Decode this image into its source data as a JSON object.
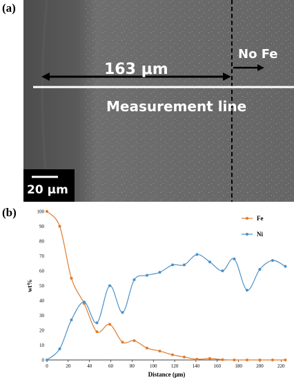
{
  "figure": {
    "panel_a_label": "(a)",
    "panel_b_label": "(b)"
  },
  "sem_image": {
    "distance_label": "163 μm",
    "no_fe_label": "No Fe",
    "measurement_label": "Measurement line",
    "scale_bar_label": "20 μm"
  },
  "colors": {
    "fe": "#e07b2c",
    "ni": "#4a90c8"
  },
  "chart_data": {
    "type": "line",
    "xlabel": "Distance (μm)",
    "ylabel": "wt%",
    "xlim": [
      0,
      225
    ],
    "ylim": [
      0,
      100
    ],
    "xticks": [
      0,
      20,
      40,
      60,
      80,
      100,
      120,
      140,
      160,
      180,
      200,
      220
    ],
    "yticks": [
      0,
      10,
      20,
      30,
      40,
      50,
      60,
      70,
      80,
      90,
      100
    ],
    "legend_position": "top-right",
    "series": [
      {
        "name": "Fe",
        "color": "#e07b2c",
        "x": [
          0,
          12,
          23,
          35,
          47,
          59,
          71,
          82,
          94,
          106,
          118,
          129,
          141,
          153,
          165,
          176,
          188,
          200,
          212,
          224
        ],
        "y": [
          100,
          90,
          55,
          38,
          19,
          24,
          12,
          13,
          8,
          6,
          3.5,
          2,
          0.5,
          1,
          0.2,
          0,
          0,
          0,
          0,
          0
        ]
      },
      {
        "name": "Ni",
        "color": "#4a90c8",
        "x": [
          0,
          12,
          23,
          35,
          47,
          59,
          71,
          82,
          94,
          106,
          118,
          129,
          141,
          153,
          165,
          176,
          188,
          200,
          212,
          224
        ],
        "y": [
          0,
          7.5,
          27,
          39,
          25,
          50,
          32,
          54,
          57,
          59,
          64,
          64,
          71,
          66,
          60,
          68,
          47,
          61,
          67,
          63
        ]
      }
    ]
  }
}
